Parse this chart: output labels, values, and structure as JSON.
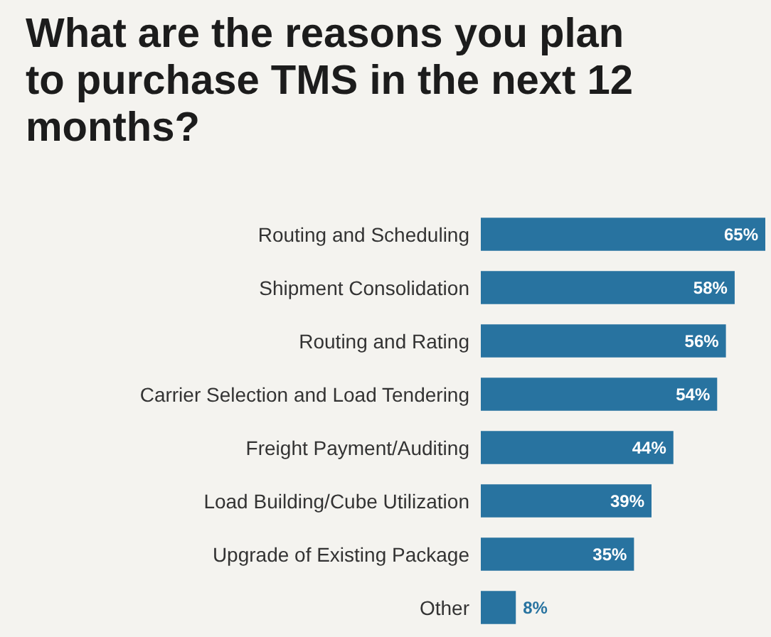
{
  "chart_data": {
    "type": "bar",
    "orientation": "horizontal",
    "title": "What are the reasons you plan to purchase TMS in the next 12 months?",
    "categories": [
      "Routing and Scheduling",
      "Shipment Consolidation",
      "Routing and Rating",
      "Carrier Selection and Load Tendering",
      "Freight Payment/Auditing",
      "Load Building/Cube Utilization",
      "Upgrade of Existing Package",
      "Other"
    ],
    "values": [
      65,
      58,
      56,
      54,
      44,
      39,
      35,
      8
    ],
    "value_labels": [
      "65%",
      "58%",
      "56%",
      "54%",
      "44%",
      "39%",
      "35%",
      "8%"
    ],
    "color": "#2873a0"
  }
}
